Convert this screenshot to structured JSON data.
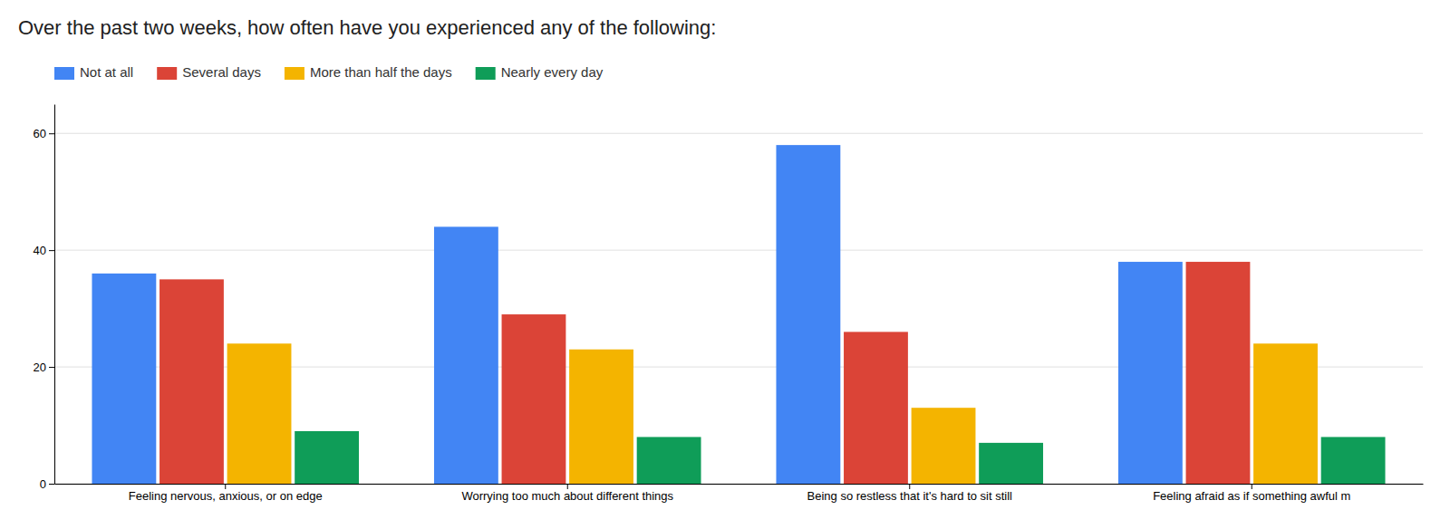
{
  "chart_data": {
    "type": "bar",
    "title": "Over the past two weeks, how often have you experienced any of the following:",
    "categories": [
      "Feeling nervous, anxious, or on edge",
      "Worrying too much about different things",
      "Being so restless that it's hard to sit still",
      "Feeling afraid as if something awful m"
    ],
    "series": [
      {
        "name": "Not at all",
        "color": "#4285F4",
        "values": [
          36,
          44,
          58,
          38
        ]
      },
      {
        "name": "Several days",
        "color": "#DB4437",
        "values": [
          35,
          29,
          26,
          38
        ]
      },
      {
        "name": "More than half the days",
        "color": "#F4B400",
        "values": [
          24,
          23,
          13,
          24
        ]
      },
      {
        "name": "Nearly every day",
        "color": "#0F9D58",
        "values": [
          9,
          8,
          7,
          8
        ]
      }
    ],
    "ylim": [
      0,
      65
    ],
    "yticks": [
      0,
      20,
      40,
      60
    ],
    "grid": true,
    "legend": "upper left"
  }
}
